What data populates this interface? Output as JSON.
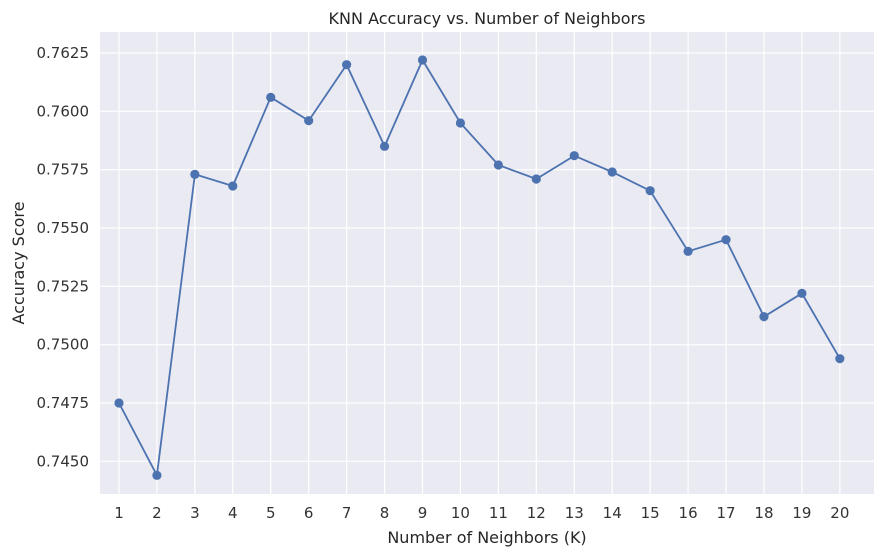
{
  "chart_data": {
    "type": "line",
    "title": "KNN Accuracy vs. Number of Neighbors",
    "xlabel": "Number of Neighbors (K)",
    "ylabel": "Accuracy Score",
    "x": [
      1,
      2,
      3,
      4,
      5,
      6,
      7,
      8,
      9,
      10,
      11,
      12,
      13,
      14,
      15,
      16,
      17,
      18,
      19,
      20
    ],
    "x_ticks": [
      "1",
      "2",
      "3",
      "4",
      "5",
      "6",
      "7",
      "8",
      "9",
      "10",
      "11",
      "12",
      "13",
      "14",
      "15",
      "16",
      "17",
      "18",
      "19",
      "20"
    ],
    "xlim": [
      0.5,
      20.9
    ],
    "series": [
      {
        "values": [
          0.7475,
          0.7444,
          0.7573,
          0.7568,
          0.7606,
          0.7596,
          0.762,
          0.7585,
          0.7622,
          0.7595,
          0.7577,
          0.7571,
          0.7581,
          0.7574,
          0.7566,
          0.754,
          0.7545,
          0.7512,
          0.7522,
          0.7494
        ],
        "color": "#4c72b0",
        "marker": "circle"
      }
    ],
    "y_ticks": [
      "0.7450",
      "0.7475",
      "0.7500",
      "0.7525",
      "0.7550",
      "0.7575",
      "0.7600",
      "0.7625"
    ],
    "y_tick_values": [
      0.745,
      0.7475,
      0.75,
      0.7525,
      0.755,
      0.7575,
      0.76,
      0.7625
    ],
    "ylim": [
      0.7436,
      0.7634
    ],
    "grid": true,
    "legend": "none",
    "background_color": "#eaeaf2",
    "grid_color": "#ffffff"
  }
}
